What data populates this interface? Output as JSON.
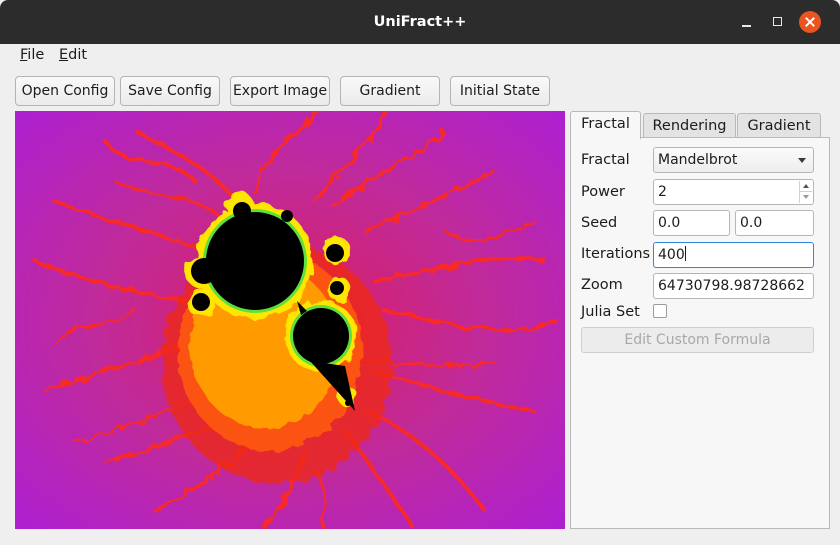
{
  "window": {
    "title": "UniFract++"
  },
  "menu": {
    "items": [
      {
        "accel": "F",
        "rest": "ile"
      },
      {
        "accel": "E",
        "rest": "dit"
      }
    ]
  },
  "toolbar": {
    "open_config": "Open Config",
    "save_config": "Save Config",
    "export_image": "Export Image",
    "gradient": "Gradient",
    "initial_state": "Initial State"
  },
  "tabs": [
    {
      "label": "Fractal",
      "active": true
    },
    {
      "label": "Rendering",
      "active": false
    },
    {
      "label": "Gradient",
      "active": false
    }
  ],
  "form": {
    "fractal_label": "Fractal",
    "fractal_value": "Mandelbrot",
    "power_label": "Power",
    "power_value": "2",
    "seed_label": "Seed",
    "seed_x": "0.0",
    "seed_y": "0.0",
    "iterations_label": "Iterations",
    "iterations_value": "400",
    "zoom_label": "Zoom",
    "zoom_value": "64730798.98728662",
    "julia_label": "Julia Set",
    "julia_checked": false,
    "custom_formula_label": "Edit Custom Formula"
  },
  "icons": {
    "minimize": "minimize-icon",
    "maximize": "maximize-icon",
    "close": "close-icon",
    "combo_arrow": "chevron-down-icon",
    "spin_up": "chevron-up-icon",
    "spin_down": "chevron-down-icon"
  },
  "colors": {
    "titlebar": "#2c2c2c",
    "close_button": "#e95420",
    "focus": "#3584e4",
    "fractal_background": "#ad20d2",
    "fractal_glow": "#ff1e1e",
    "fractal_edge": "#ffe600",
    "fractal_set": "#000000"
  }
}
